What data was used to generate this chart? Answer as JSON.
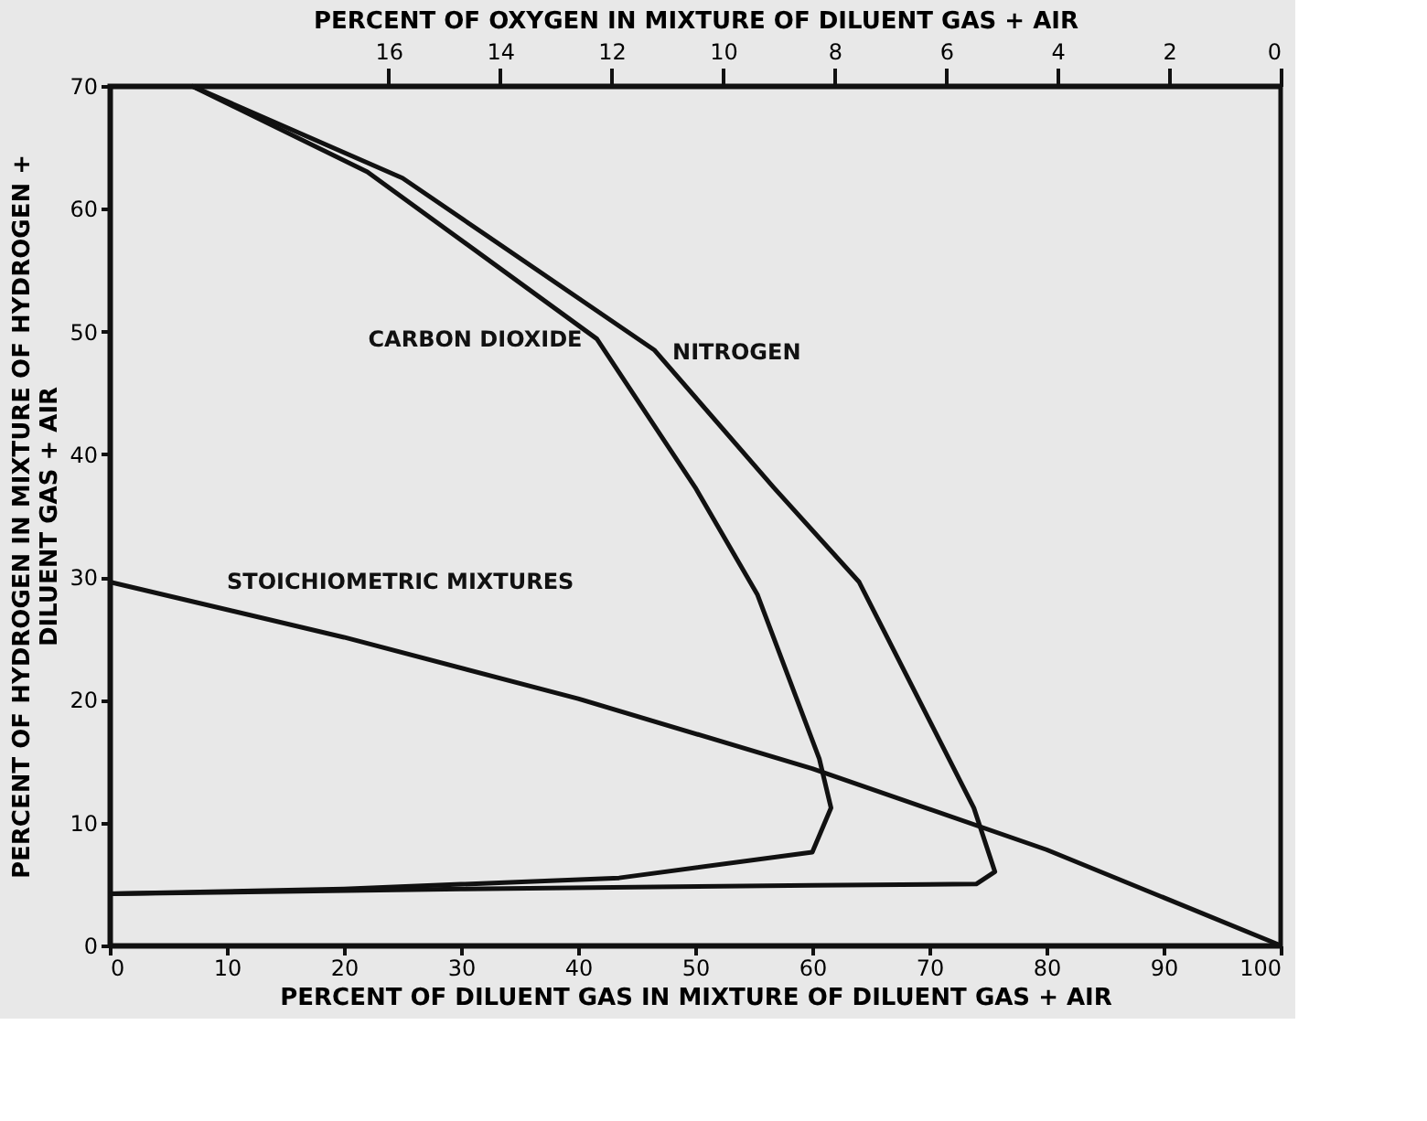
{
  "chart_data": {
    "type": "line",
    "xlabel": "PERCENT OF DILUENT GAS IN MIXTURE OF DILUENT GAS + AIR",
    "x2label": "PERCENT OF OXYGEN IN MIXTURE OF DILUENT GAS + AIR",
    "ylabel": "PERCENT OF HYDROGEN IN MIXTURE OF HYDROGEN + DILUENT GAS + AIR",
    "xlim": [
      0,
      100
    ],
    "xticks": [
      0,
      10,
      20,
      30,
      40,
      50,
      60,
      70,
      80,
      90,
      100
    ],
    "x2lim": [
      21,
      0
    ],
    "x2ticks": [
      16,
      14,
      12,
      10,
      8,
      6,
      4,
      2,
      0
    ],
    "ylim": [
      0,
      70
    ],
    "yticks": [
      0,
      10,
      20,
      30,
      40,
      50,
      60,
      70
    ],
    "grid": false,
    "marker": "none",
    "line_style": "solid",
    "series": [
      {
        "color": "#111111",
        "x": [
          0,
          20,
          43.5,
          60,
          61.6,
          60.6,
          55.3,
          50,
          41.6,
          22,
          7
        ],
        "values": [
          4.2,
          4.6,
          5.5,
          7.6,
          11.2,
          15.2,
          28.6,
          37.3,
          49.4,
          63,
          70
        ]
      },
      {
        "color": "#111111",
        "x": [
          0,
          30,
          60,
          74,
          75.6,
          73.8,
          64,
          56.7,
          46.5,
          25,
          7
        ],
        "values": [
          4.2,
          4.6,
          4.9,
          5,
          6,
          11.2,
          29.6,
          37.3,
          48.5,
          62.5,
          70
        ]
      },
      {
        "color": "#111111",
        "x": [
          0,
          20,
          40,
          60,
          80,
          100
        ],
        "values": [
          29.6,
          25.1,
          20.1,
          14.4,
          7.8,
          0
        ]
      }
    ],
    "annotations": [
      {
        "text": "CARBON DIOXIDE",
        "x": 41.6,
        "y": 49.4
      },
      {
        "text": "NITROGEN",
        "x": 46.8,
        "y": 48.3
      },
      {
        "text": "STOICHIOMETRIC MIXTURES",
        "x": 10,
        "y": 27.4
      }
    ]
  }
}
